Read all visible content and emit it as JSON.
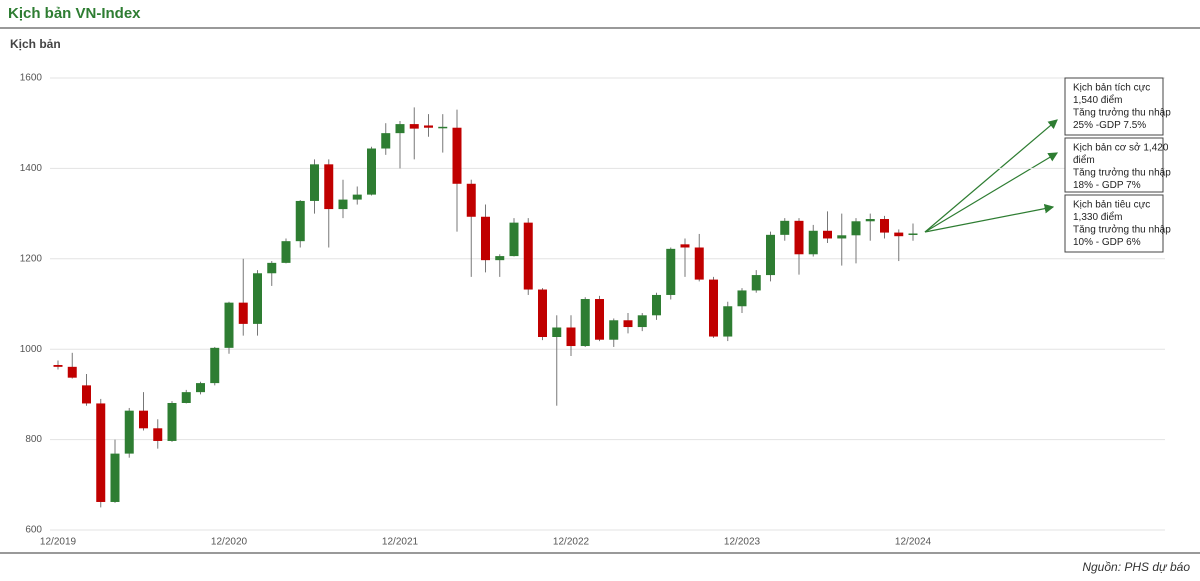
{
  "chart_data": {
    "type": "candlestick",
    "title": "Kịch bản VN-Index",
    "subtitle": "Kịch bản",
    "source": "Nguồn: PHS dự báo",
    "categories": [
      "12/2019",
      null,
      null,
      null,
      null,
      null,
      null,
      null,
      null,
      null,
      null,
      null,
      "12/2020",
      null,
      null,
      null,
      null,
      null,
      null,
      null,
      null,
      null,
      null,
      null,
      "12/2021",
      null,
      null,
      null,
      null,
      null,
      null,
      null,
      null,
      null,
      null,
      null,
      "12/2022",
      null,
      null,
      null,
      null,
      null,
      null,
      null,
      null,
      null,
      null,
      null,
      "12/2023",
      null,
      null,
      null,
      null,
      null,
      null,
      null,
      null,
      null,
      null,
      null,
      "12/2024"
    ],
    "open": [
      965,
      961,
      920,
      880,
      662,
      769,
      864,
      825,
      797,
      881,
      905,
      925,
      1003,
      1103,
      1056,
      1168,
      1191,
      1239,
      1328,
      1409,
      1310,
      1331,
      1342,
      1444,
      1478,
      1498,
      1495,
      1490,
      1490,
      1366,
      1293,
      1197,
      1206,
      1280,
      1132,
      1027,
      1048,
      1007,
      1111,
      1021,
      1064,
      1049,
      1075,
      1120,
      1232,
      1225,
      1154,
      1028,
      1095,
      1130,
      1164,
      1253,
      1284,
      1210,
      1262,
      1245,
      1252,
      1283,
      1288,
      1258,
      1254
    ],
    "high": [
      975,
      992,
      945,
      890,
      800,
      870,
      905,
      845,
      885,
      910,
      928,
      1005,
      1105,
      1200,
      1175,
      1195,
      1245,
      1330,
      1420,
      1420,
      1375,
      1360,
      1448,
      1500,
      1505,
      1535,
      1520,
      1520,
      1530,
      1375,
      1320,
      1210,
      1290,
      1290,
      1135,
      1075,
      1075,
      1115,
      1118,
      1068,
      1080,
      1080,
      1125,
      1225,
      1245,
      1255,
      1160,
      1105,
      1135,
      1175,
      1260,
      1290,
      1290,
      1275,
      1305,
      1300,
      1290,
      1300,
      1295,
      1265,
      1278
    ],
    "low": [
      955,
      935,
      875,
      650,
      660,
      760,
      820,
      780,
      795,
      880,
      900,
      920,
      990,
      1030,
      1030,
      1140,
      1190,
      1225,
      1300,
      1225,
      1290,
      1320,
      1340,
      1430,
      1400,
      1420,
      1470,
      1435,
      1260,
      1160,
      1170,
      1160,
      1205,
      1120,
      1020,
      875,
      985,
      1005,
      1018,
      1005,
      1035,
      1040,
      1065,
      1110,
      1160,
      1150,
      1025,
      1018,
      1080,
      1125,
      1150,
      1240,
      1165,
      1205,
      1235,
      1185,
      1190,
      1240,
      1245,
      1195,
      1240
    ],
    "close": [
      961,
      937,
      880,
      662,
      769,
      864,
      825,
      797,
      881,
      905,
      925,
      1003,
      1103,
      1056,
      1168,
      1191,
      1239,
      1328,
      1409,
      1310,
      1331,
      1342,
      1444,
      1478,
      1498,
      1488,
      1490,
      1492,
      1366,
      1293,
      1197,
      1206,
      1280,
      1132,
      1027,
      1048,
      1007,
      1111,
      1021,
      1064,
      1049,
      1075,
      1120,
      1222,
      1225,
      1154,
      1028,
      1095,
      1130,
      1164,
      1253,
      1284,
      1210,
      1262,
      1245,
      1252,
      1283,
      1288,
      1258,
      1250,
      1256
    ],
    "up_color": "#2e7d32",
    "down_color": "#c00000",
    "ylim": [
      600,
      1600
    ],
    "yticks": [
      600,
      800,
      1000,
      1200,
      1400,
      1600
    ],
    "grid": true,
    "annotations": [
      {
        "lines": [
          "Kịch bản tích cực",
          "1,540 điểm",
          "Tăng trưởng thu nhập",
          "25% -GDP 7.5%"
        ]
      },
      {
        "lines": [
          "Kịch bản cơ sở 1,420",
          "điểm",
          "Tăng trưởng thu nhập",
          "18% - GDP 7%"
        ]
      },
      {
        "lines": [
          "Kịch bản tiêu cực",
          "1,330 điểm",
          "Tăng trưởng thu nhập",
          "10% - GDP 6%"
        ]
      }
    ]
  }
}
